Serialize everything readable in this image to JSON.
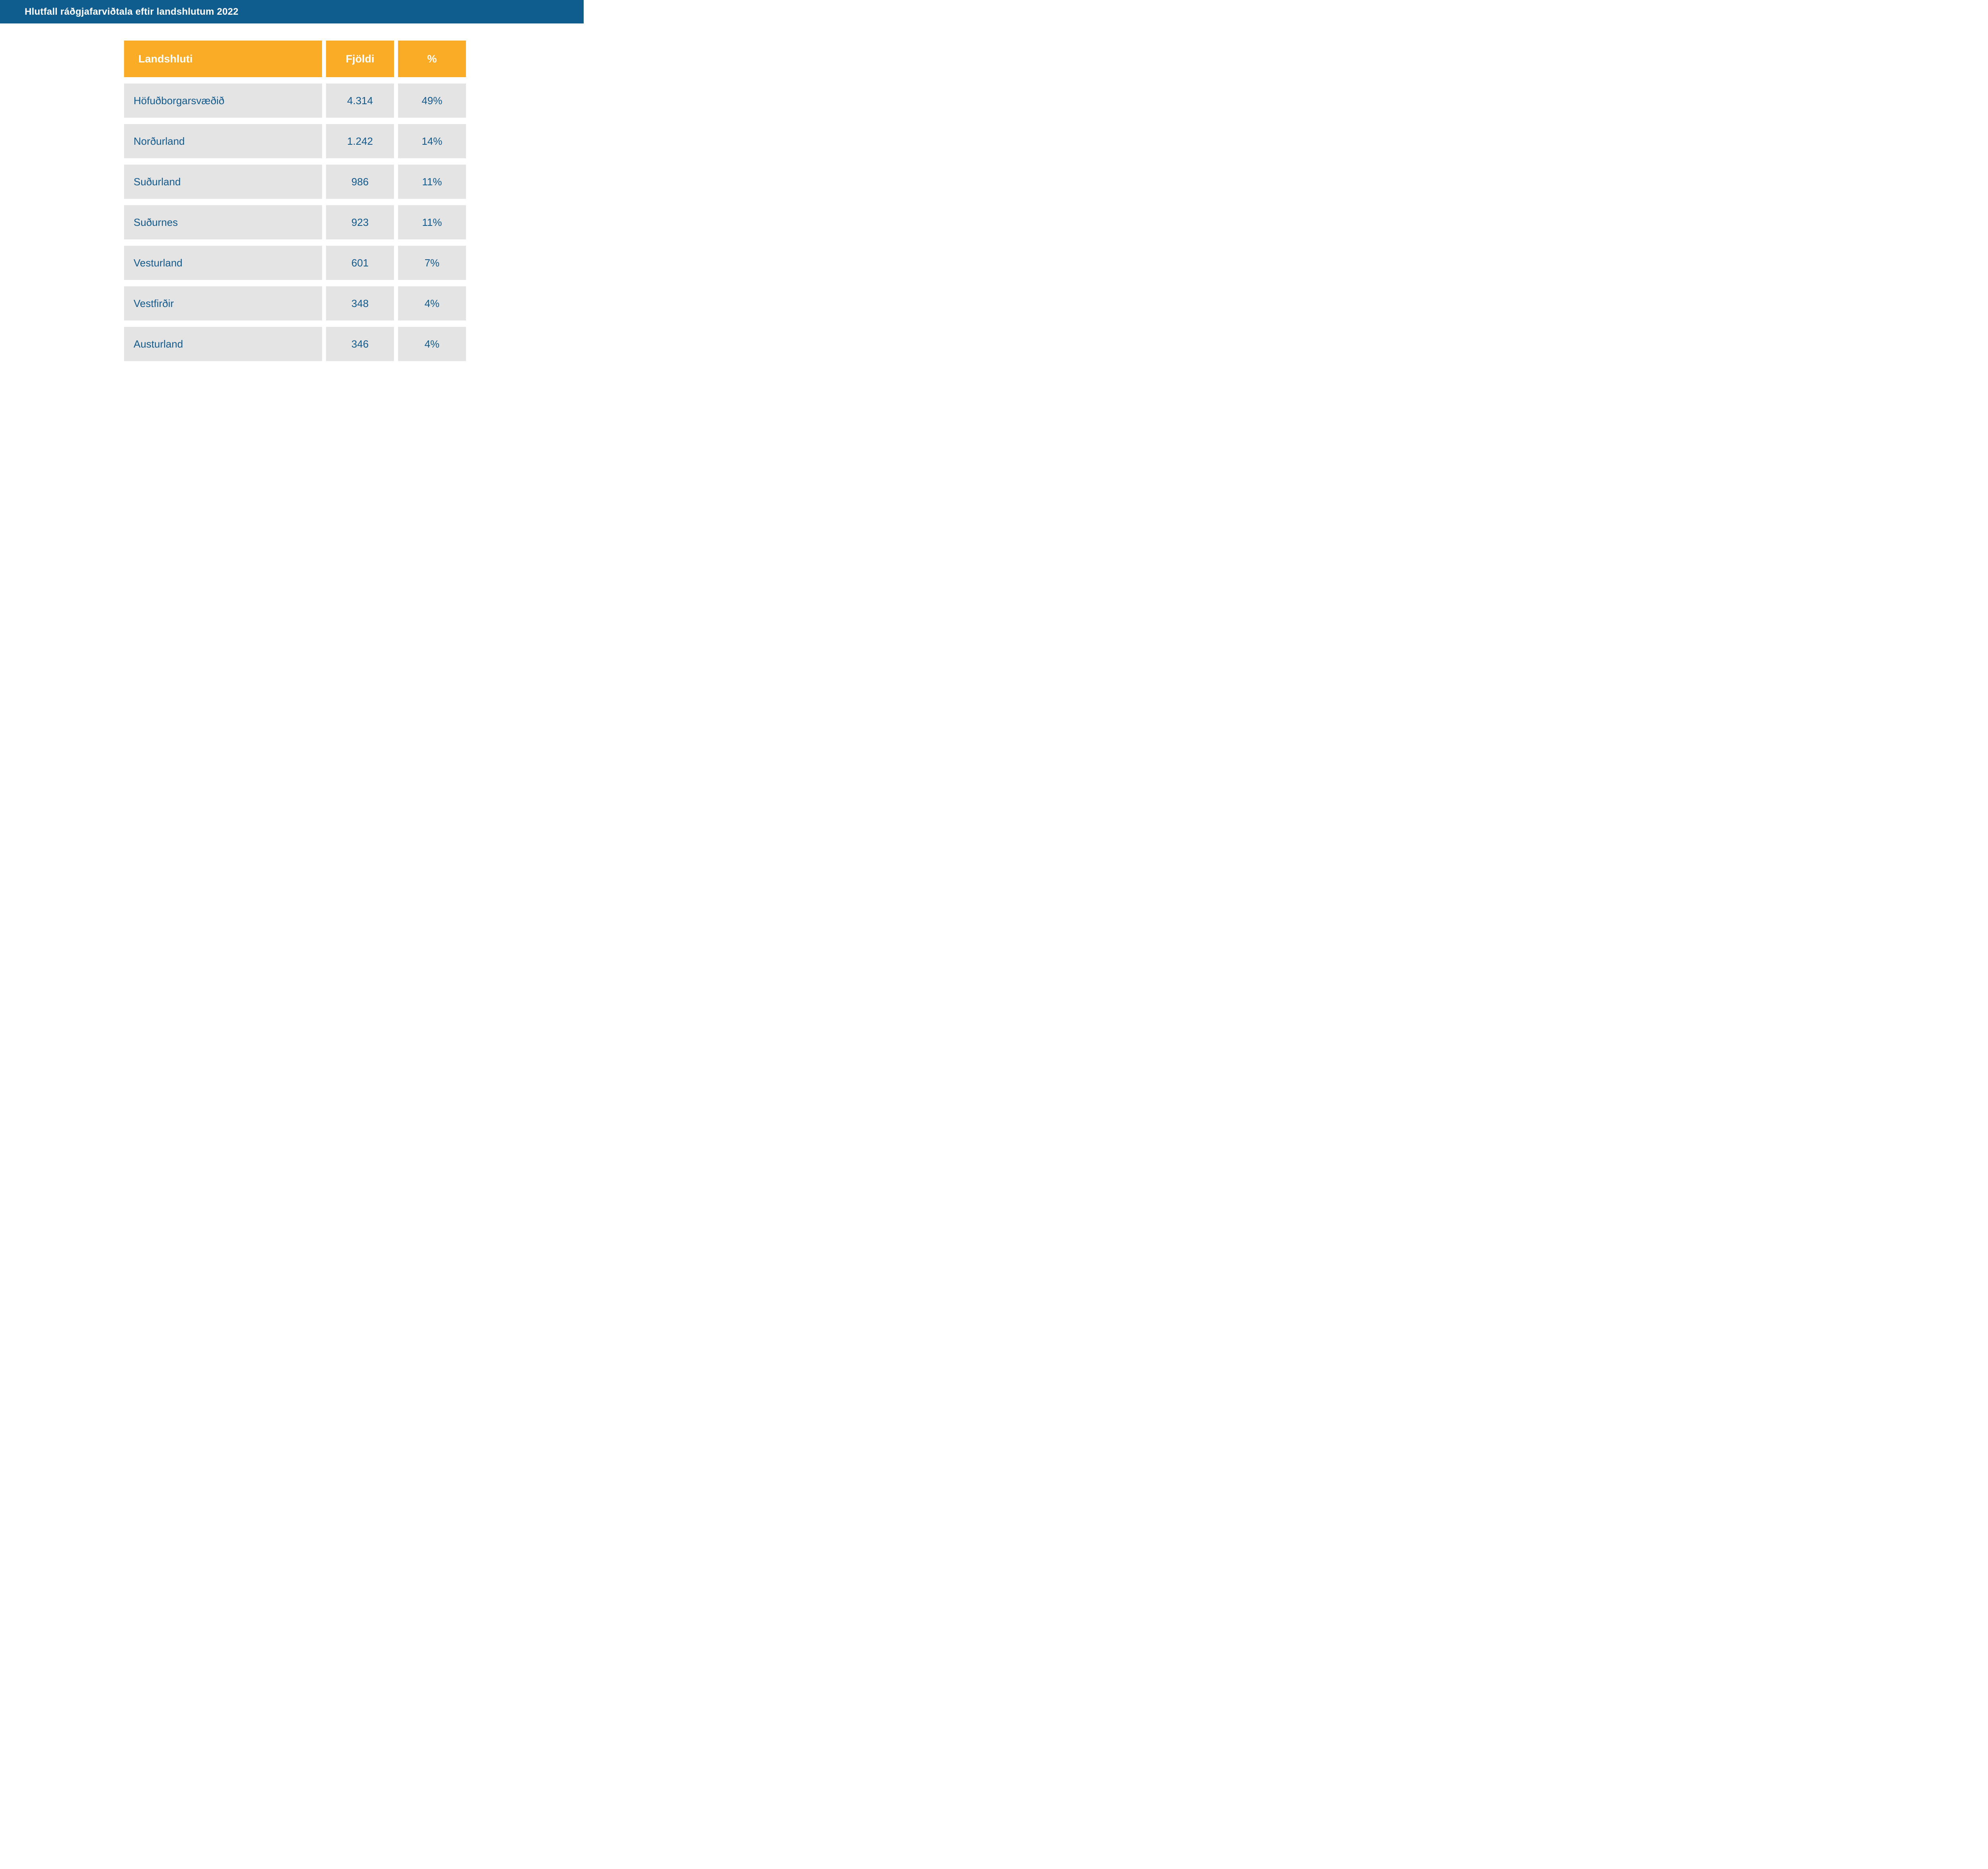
{
  "header": {
    "title": "Hlutfall ráðgjafarviðtala eftir landshlutum 2022"
  },
  "table": {
    "columns": [
      "Landshluti",
      "Fjöldi",
      "%"
    ],
    "rows": [
      {
        "region": "Höfuðborgarsvæðið",
        "count": "4.314",
        "percent": "49%"
      },
      {
        "region": "Norðurland",
        "count": "1.242",
        "percent": "14%"
      },
      {
        "region": "Suðurland",
        "count": "986",
        "percent": "11%"
      },
      {
        "region": "Suðurnes",
        "count": "923",
        "percent": "11%"
      },
      {
        "region": "Vesturland",
        "count": "601",
        "percent": "7%"
      },
      {
        "region": "Vestfirðir",
        "count": "348",
        "percent": "4%"
      },
      {
        "region": "Austurland",
        "count": "346",
        "percent": "4%"
      }
    ]
  },
  "colors": {
    "topbar_blue": "#0F5C8F",
    "header_orange": "#FBAC26",
    "row_gray": "#E4E4E5",
    "text_blue": "#135A8C",
    "header_text": "#ffffff"
  },
  "chart_data": {
    "type": "table",
    "title": "Hlutfall ráðgjafarviðtala eftir landshlutum 2022",
    "columns": [
      "Landshluti",
      "Fjöldi",
      "%"
    ],
    "rows": [
      [
        "Höfuðborgarsvæðið",
        4314,
        "49%"
      ],
      [
        "Norðurland",
        1242,
        "14%"
      ],
      [
        "Suðurland",
        986,
        "11%"
      ],
      [
        "Suðurnes",
        923,
        "11%"
      ],
      [
        "Vesturland",
        601,
        "7%"
      ],
      [
        "Vestfirðir",
        348,
        "4%"
      ],
      [
        "Austurland",
        346,
        "4%"
      ]
    ]
  }
}
